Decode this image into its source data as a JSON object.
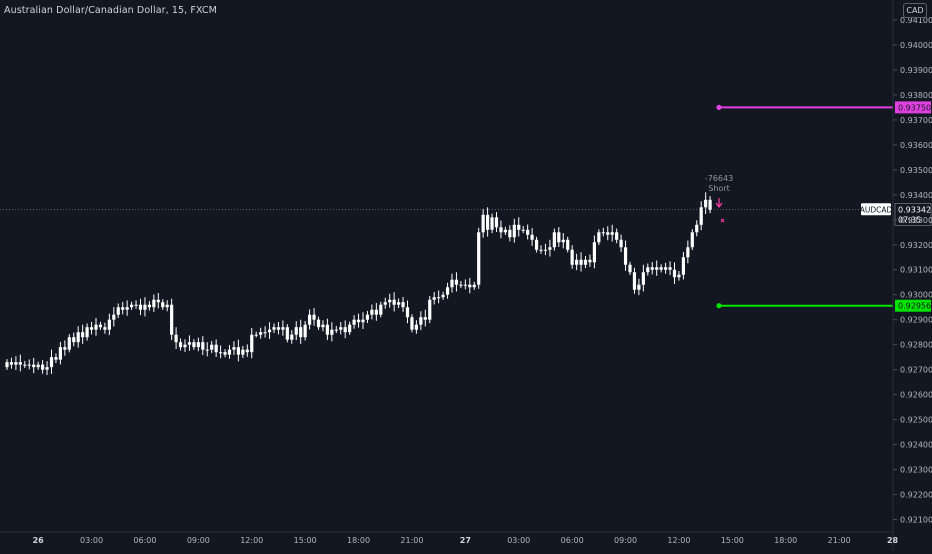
{
  "header": {
    "title": "Australian Dollar/Canadian Dollar, 15, FXCM",
    "currency": "CAD"
  },
  "colors": {
    "background": "#131722",
    "candle": "#ffffff",
    "axis_text": "#b2b5be",
    "grid": "#1f2430",
    "target_line": "#e040e0",
    "stop_line": "#00e400",
    "signal_text": "#9598a1",
    "signal_arrow": "#ff3da8",
    "symbol_label_bg": "#ffffff",
    "symbol_label_text": "#131722"
  },
  "chart_data": {
    "type": "candlestick",
    "symbol": "AUDCAD",
    "timeframe": "15",
    "ylim": [
      0.9205,
      0.9418
    ],
    "y_ticks": [
      "0.94100",
      "0.94000",
      "0.93900",
      "0.93800",
      "0.93700",
      "0.93600",
      "0.93500",
      "0.93400",
      "0.93300",
      "0.93200",
      "0.93100",
      "0.93000",
      "0.92900",
      "0.92800",
      "0.92700",
      "0.92600",
      "0.92500",
      "0.92400",
      "0.92300",
      "0.92200",
      "0.92100"
    ],
    "x_ticks": [
      {
        "label": "26",
        "bar": 7,
        "bold": true
      },
      {
        "label": "03:00",
        "bar": 19
      },
      {
        "label": "06:00",
        "bar": 31
      },
      {
        "label": "09:00",
        "bar": 43
      },
      {
        "label": "12:00",
        "bar": 55
      },
      {
        "label": "15:00",
        "bar": 67
      },
      {
        "label": "18:00",
        "bar": 79
      },
      {
        "label": "21:00",
        "bar": 91
      },
      {
        "label": "27",
        "bar": 103,
        "bold": true
      },
      {
        "label": "03:00",
        "bar": 115
      },
      {
        "label": "06:00",
        "bar": 127
      },
      {
        "label": "09:00",
        "bar": 139
      },
      {
        "label": "12:00",
        "bar": 151
      },
      {
        "label": "15:00",
        "bar": 163
      },
      {
        "label": "18:00",
        "bar": 175
      },
      {
        "label": "21:00",
        "bar": 187
      },
      {
        "label": "28",
        "bar": 199,
        "bold": true
      }
    ],
    "closes": [
      0.9273,
      0.9272,
      0.9273,
      0.9272,
      0.9272,
      0.9272,
      0.9271,
      0.9272,
      0.927,
      0.9271,
      0.9275,
      0.9274,
      0.9279,
      0.9278,
      0.9283,
      0.9281,
      0.9285,
      0.9283,
      0.9287,
      0.9286,
      0.9288,
      0.9287,
      0.9286,
      0.929,
      0.9292,
      0.9295,
      0.9294,
      0.9295,
      0.9296,
      0.9296,
      0.9294,
      0.9296,
      0.9295,
      0.9298,
      0.9297,
      0.9295,
      0.9296,
      0.9284,
      0.9281,
      0.9279,
      0.928,
      0.9281,
      0.9279,
      0.9281,
      0.9278,
      0.9278,
      0.928,
      0.9277,
      0.9277,
      0.9276,
      0.9278,
      0.9279,
      0.9276,
      0.9278,
      0.9277,
      0.9284,
      0.9284,
      0.9285,
      0.9285,
      0.9286,
      0.9287,
      0.9286,
      0.9287,
      0.9282,
      0.9284,
      0.9287,
      0.9283,
      0.9288,
      0.9292,
      0.929,
      0.9287,
      0.9288,
      0.9284,
      0.9286,
      0.9286,
      0.9287,
      0.9285,
      0.9288,
      0.929,
      0.9289,
      0.929,
      0.9292,
      0.9294,
      0.9292,
      0.9296,
      0.9297,
      0.9298,
      0.9296,
      0.9297,
      0.9295,
      0.9291,
      0.9286,
      0.9288,
      0.9291,
      0.929,
      0.9298,
      0.9299,
      0.9299,
      0.93,
      0.9303,
      0.9306,
      0.9304,
      0.9304,
      0.9304,
      0.9303,
      0.9304,
      0.9325,
      0.9332,
      0.9326,
      0.9331,
      0.9327,
      0.9325,
      0.9326,
      0.9323,
      0.9328,
      0.9326,
      0.9326,
      0.9324,
      0.9322,
      0.9318,
      0.9318,
      0.9318,
      0.9319,
      0.9325,
      0.9321,
      0.9322,
      0.9318,
      0.9312,
      0.9314,
      0.9312,
      0.9314,
      0.9313,
      0.9321,
      0.9325,
      0.9325,
      0.9324,
      0.9325,
      0.9322,
      0.9319,
      0.9312,
      0.9309,
      0.9302,
      0.9304,
      0.9309,
      0.9311,
      0.931,
      0.9311,
      0.931,
      0.9311,
      0.931,
      0.9307,
      0.9308,
      0.9315,
      0.9319,
      0.9325,
      0.9328,
      0.9335,
      0.9338,
      0.9334
    ],
    "open_first": 0.9271,
    "last_price": "0.93342",
    "countdown": "07:35",
    "horizontal_levels": [
      {
        "name": "take-profit",
        "price": 0.9375,
        "label": "0.93750",
        "start_bar": 160
      },
      {
        "name": "stop-loss",
        "price": 0.92956,
        "label": "0.92956",
        "start_bar": 160
      }
    ],
    "signal": {
      "bar": 160,
      "line1": "-76643",
      "line2": "Short"
    }
  }
}
